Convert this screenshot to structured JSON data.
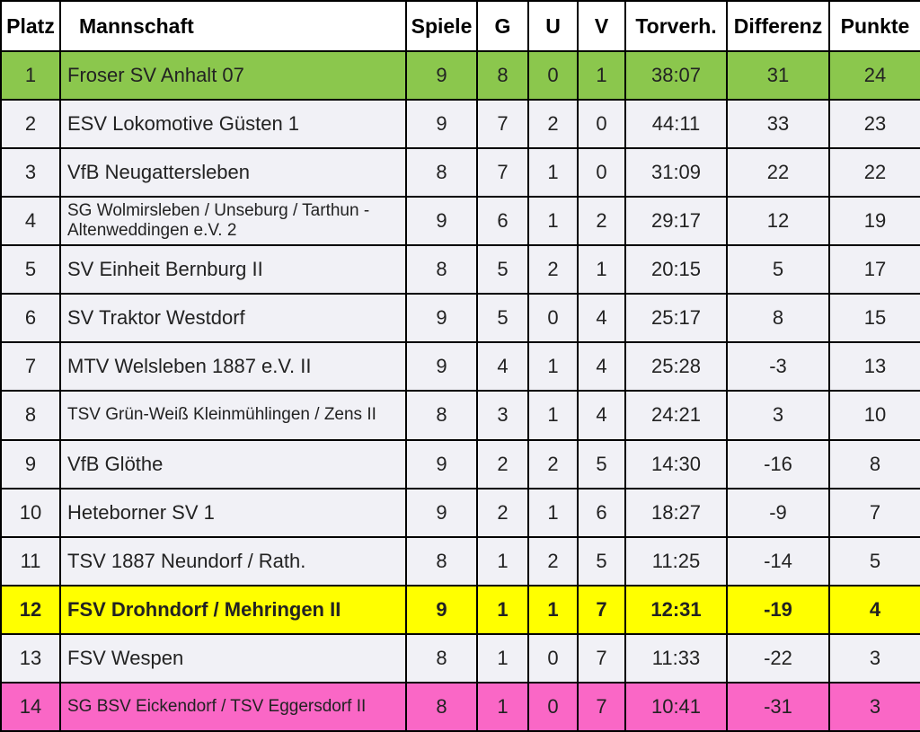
{
  "colors": {
    "promotion_green": "#8BC74D",
    "highlight_yellow": "#FFFF00",
    "relegation_pink": "#FA67C6",
    "row_background": "#F1F1F6",
    "header_background": "#FFFFFF",
    "border": "#000000",
    "text": "#222222"
  },
  "chart_data": {
    "type": "table",
    "columns": [
      "Platz",
      "Mannschaft",
      "Spiele",
      "G",
      "U",
      "V",
      "Torverh.",
      "Differenz",
      "Punkte"
    ],
    "rows": [
      {
        "platz": 1,
        "mannschaft": "Froser SV Anhalt 07",
        "spiele": 9,
        "g": 8,
        "u": 0,
        "v": 1,
        "torverh": "38:07",
        "differenz": 31,
        "punkte": 24,
        "highlight": "green"
      },
      {
        "platz": 2,
        "mannschaft": "ESV Lokomotive Güsten 1",
        "spiele": 9,
        "g": 7,
        "u": 2,
        "v": 0,
        "torverh": "44:11",
        "differenz": 33,
        "punkte": 23,
        "highlight": null
      },
      {
        "platz": 3,
        "mannschaft": "VfB Neugattersleben",
        "spiele": 8,
        "g": 7,
        "u": 1,
        "v": 0,
        "torverh": "31:09",
        "differenz": 22,
        "punkte": 22,
        "highlight": null
      },
      {
        "platz": 4,
        "mannschaft": "SG Wolmirsleben / Unseburg / Tarthun - Altenweddingen e.V. 2",
        "spiele": 9,
        "g": 6,
        "u": 1,
        "v": 2,
        "torverh": "29:17",
        "differenz": 12,
        "punkte": 19,
        "highlight": null
      },
      {
        "platz": 5,
        "mannschaft": "SV Einheit Bernburg II",
        "spiele": 8,
        "g": 5,
        "u": 2,
        "v": 1,
        "torverh": "20:15",
        "differenz": 5,
        "punkte": 17,
        "highlight": null
      },
      {
        "platz": 6,
        "mannschaft": "SV Traktor Westdorf",
        "spiele": 9,
        "g": 5,
        "u": 0,
        "v": 4,
        "torverh": "25:17",
        "differenz": 8,
        "punkte": 15,
        "highlight": null
      },
      {
        "platz": 7,
        "mannschaft": "MTV Welsleben 1887 e.V. II",
        "spiele": 9,
        "g": 4,
        "u": 1,
        "v": 4,
        "torverh": "25:28",
        "differenz": -3,
        "punkte": 13,
        "highlight": null
      },
      {
        "platz": 8,
        "mannschaft": "TSV Grün-Weiß Kleinmühlingen / Zens II",
        "spiele": 8,
        "g": 3,
        "u": 1,
        "v": 4,
        "torverh": "24:21",
        "differenz": 3,
        "punkte": 10,
        "highlight": null
      },
      {
        "platz": 9,
        "mannschaft": "VfB Glöthe",
        "spiele": 9,
        "g": 2,
        "u": 2,
        "v": 5,
        "torverh": "14:30",
        "differenz": -16,
        "punkte": 8,
        "highlight": null
      },
      {
        "platz": 10,
        "mannschaft": "Heteborner SV 1",
        "spiele": 9,
        "g": 2,
        "u": 1,
        "v": 6,
        "torverh": "18:27",
        "differenz": -9,
        "punkte": 7,
        "highlight": null
      },
      {
        "platz": 11,
        "mannschaft": "TSV 1887 Neundorf / Rath.",
        "spiele": 8,
        "g": 1,
        "u": 2,
        "v": 5,
        "torverh": "11:25",
        "differenz": -14,
        "punkte": 5,
        "highlight": null
      },
      {
        "platz": 12,
        "mannschaft": "FSV Drohndorf / Mehringen II",
        "spiele": 9,
        "g": 1,
        "u": 1,
        "v": 7,
        "torverh": "12:31",
        "differenz": -19,
        "punkte": 4,
        "highlight": "yellow"
      },
      {
        "platz": 13,
        "mannschaft": "FSV Wespen",
        "spiele": 8,
        "g": 1,
        "u": 0,
        "v": 7,
        "torverh": "11:33",
        "differenz": -22,
        "punkte": 3,
        "highlight": null
      },
      {
        "platz": 14,
        "mannschaft": "SG BSV Eickendorf / TSV Eggersdorf II",
        "spiele": 8,
        "g": 1,
        "u": 0,
        "v": 7,
        "torverh": "10:41",
        "differenz": -31,
        "punkte": 3,
        "highlight": "pink"
      }
    ]
  }
}
